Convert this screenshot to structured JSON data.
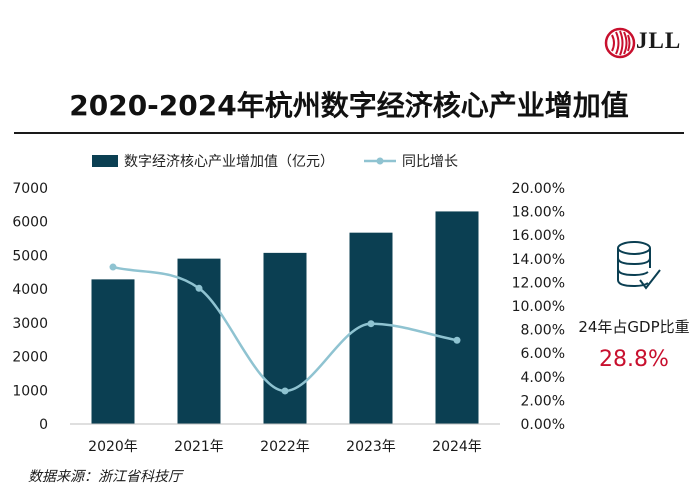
{
  "brand": {
    "logo_text": "JLL",
    "accent": "#c8102e"
  },
  "title": "2020-2024年杭州数字经济核心产业增加值",
  "legend": {
    "bar_label": "数字经济核心产业增加值（亿元）",
    "line_label": "同比增长"
  },
  "side_panel": {
    "icon": "database-check-icon",
    "label": "24年占GDP比重",
    "value": "28.8%"
  },
  "source": "数据来源：浙江省科技厅",
  "colors": {
    "bar": "#0b3f52",
    "line": "#8fc3d1",
    "value_red": "#c8102e"
  },
  "chart_data": {
    "type": "bar",
    "title": "2020-2024年杭州数字经济核心产业增加值",
    "categories": [
      "2020年",
      "2021年",
      "2022年",
      "2023年",
      "2024年"
    ],
    "series": [
      {
        "name": "数字经济核心产业增加值（亿元）",
        "type": "bar",
        "axis": "left",
        "values": [
          4290,
          4905,
          5076,
          5675,
          6305
        ]
      },
      {
        "name": "同比增长",
        "type": "line",
        "axis": "right",
        "smooth": true,
        "values": [
          13.3,
          11.5,
          2.8,
          8.5,
          7.1
        ]
      }
    ],
    "y_left": {
      "min": 0,
      "max": 7000,
      "ticks": [
        "0",
        "1000",
        "2000",
        "3000",
        "4000",
        "5000",
        "6000",
        "7000"
      ]
    },
    "y_right": {
      "min": 0,
      "max": 20,
      "ticks": [
        "0.00%",
        "2.00%",
        "4.00%",
        "6.00%",
        "8.00%",
        "10.00%",
        "12.00%",
        "14.00%",
        "16.00%",
        "18.00%",
        "20.00%"
      ]
    },
    "grid": false,
    "legend_position": "top"
  }
}
